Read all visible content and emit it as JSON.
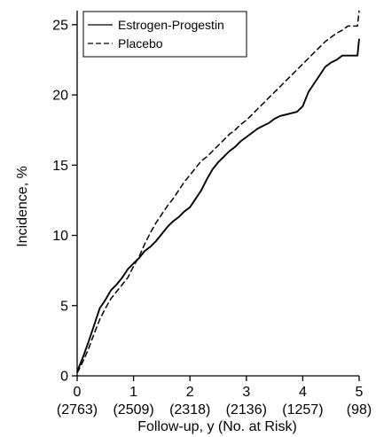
{
  "chart_data": {
    "type": "line",
    "xlabel": "Follow-up, y (No. at Risk)",
    "ylabel": "Incidence, %",
    "xlim": [
      0,
      5
    ],
    "ylim": [
      0,
      26
    ],
    "x_ticks": [
      0,
      1,
      2,
      3,
      4,
      5
    ],
    "x_tick_labels": [
      "0",
      "1",
      "2",
      "3",
      "4",
      "5"
    ],
    "no_at_risk": [
      "(2763)",
      "(2509)",
      "(2318)",
      "(2136)",
      "(1257)",
      "(98)"
    ],
    "y_ticks": [
      0,
      5,
      10,
      15,
      20,
      25
    ],
    "y_tick_labels": [
      "0",
      "5",
      "10",
      "15",
      "20",
      "25"
    ],
    "grid": false,
    "legend_position": "top-left",
    "series": [
      {
        "name": "Estrogen-Progestin",
        "line_style": "solid",
        "x": [
          0,
          0.05,
          0.1,
          0.2,
          0.3,
          0.4,
          0.5,
          0.6,
          0.7,
          0.8,
          0.9,
          1.0,
          1.1,
          1.2,
          1.3,
          1.4,
          1.5,
          1.6,
          1.7,
          1.8,
          1.9,
          2.0,
          2.1,
          2.2,
          2.3,
          2.4,
          2.5,
          2.6,
          2.7,
          2.8,
          2.9,
          3.0,
          3.1,
          3.2,
          3.3,
          3.4,
          3.5,
          3.6,
          3.7,
          3.8,
          3.9,
          4.0,
          4.1,
          4.2,
          4.3,
          4.4,
          4.5,
          4.6,
          4.7,
          4.75,
          4.8,
          4.9,
          4.97,
          5.0
        ],
        "y": [
          0.3,
          0.8,
          1.3,
          2.4,
          3.6,
          4.8,
          5.4,
          6.1,
          6.5,
          7.0,
          7.6,
          8.0,
          8.4,
          8.9,
          9.2,
          9.6,
          10.1,
          10.6,
          11.0,
          11.3,
          11.7,
          12.0,
          12.6,
          13.2,
          14.0,
          14.7,
          15.2,
          15.6,
          16.0,
          16.3,
          16.7,
          17.0,
          17.3,
          17.6,
          17.8,
          18.0,
          18.3,
          18.5,
          18.6,
          18.7,
          18.8,
          19.2,
          20.2,
          20.8,
          21.4,
          22.0,
          22.3,
          22.5,
          22.8,
          22.8,
          22.8,
          22.8,
          22.8,
          24.0
        ]
      },
      {
        "name": "Placebo",
        "line_style": "dashed",
        "x": [
          0,
          0.05,
          0.1,
          0.2,
          0.3,
          0.4,
          0.5,
          0.6,
          0.7,
          0.8,
          0.9,
          1.0,
          1.1,
          1.2,
          1.3,
          1.4,
          1.5,
          1.6,
          1.7,
          1.8,
          1.9,
          2.0,
          2.1,
          2.2,
          2.3,
          2.4,
          2.5,
          2.6,
          2.7,
          2.8,
          2.9,
          3.0,
          3.1,
          3.2,
          3.3,
          3.4,
          3.5,
          3.6,
          3.7,
          3.8,
          3.9,
          4.0,
          4.1,
          4.2,
          4.3,
          4.4,
          4.5,
          4.6,
          4.7,
          4.8,
          4.9,
          4.97,
          5.0
        ],
        "y": [
          0.2,
          0.6,
          1.0,
          1.9,
          3.0,
          4.0,
          4.8,
          5.5,
          6.0,
          6.5,
          7.0,
          7.8,
          8.5,
          9.4,
          10.2,
          10.9,
          11.5,
          12.1,
          12.6,
          13.2,
          13.8,
          14.3,
          14.8,
          15.3,
          15.6,
          16.0,
          16.4,
          16.8,
          17.2,
          17.5,
          17.9,
          18.2,
          18.6,
          19.0,
          19.4,
          19.8,
          20.2,
          20.6,
          21.0,
          21.4,
          21.8,
          22.2,
          22.6,
          23.0,
          23.4,
          23.8,
          24.1,
          24.4,
          24.6,
          24.9,
          24.9,
          24.9,
          26.0
        ]
      }
    ]
  }
}
